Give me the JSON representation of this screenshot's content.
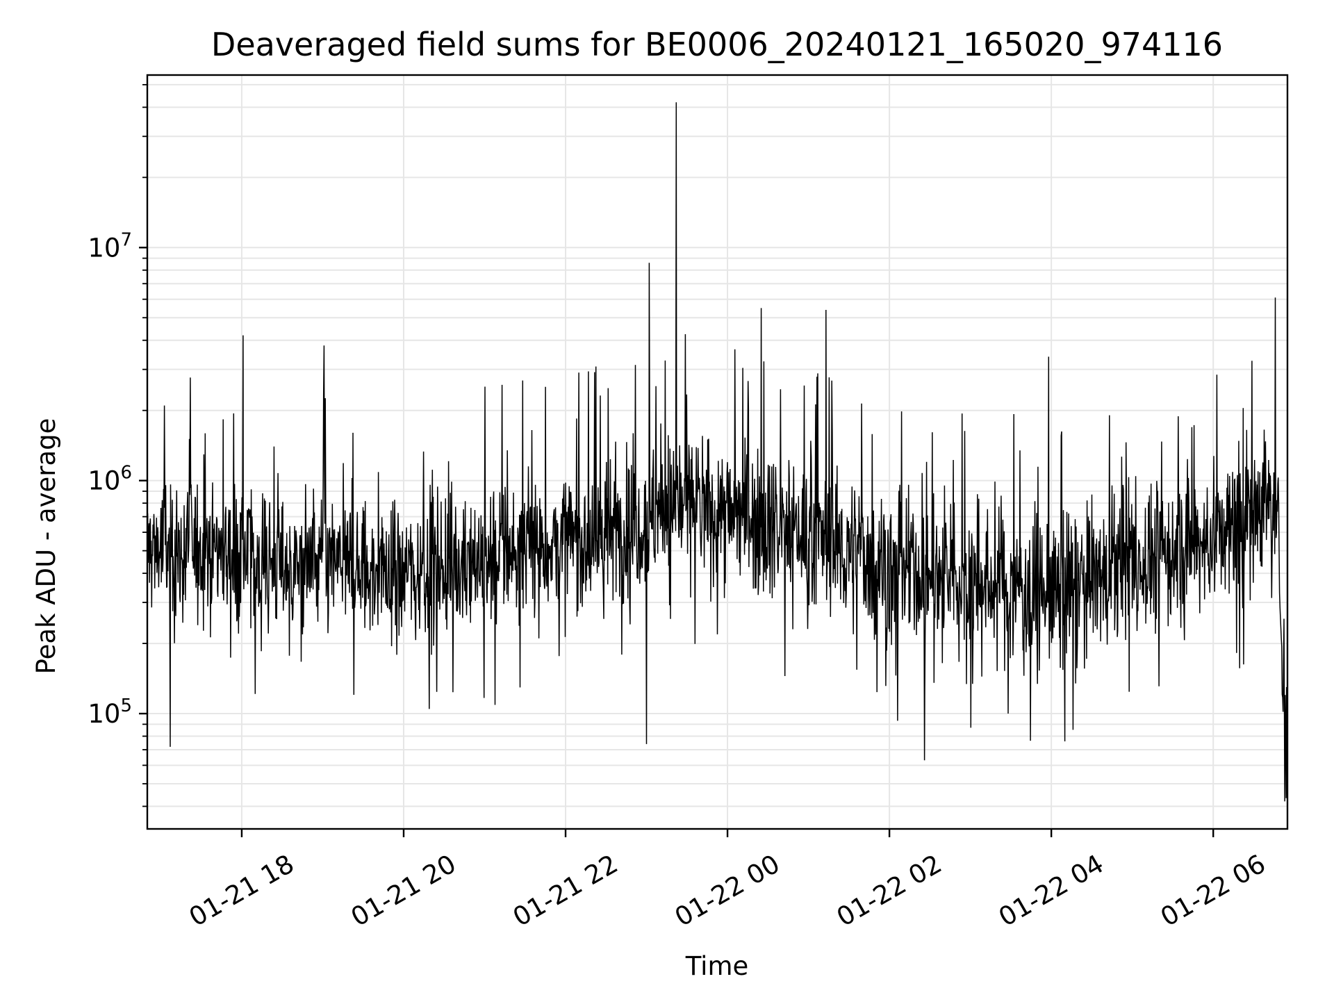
{
  "chart_data": {
    "type": "line",
    "title": "Deaveraged field sums for BE0006_20240121_165020_974116",
    "xlabel": "Time",
    "ylabel": "Peak ADU - average",
    "x_range": [
      "2024-01-21T16:50",
      "2024-01-22T06:55"
    ],
    "x_ticks": [
      {
        "t": "2024-01-21T18:00",
        "label": "01-21 18"
      },
      {
        "t": "2024-01-21T20:00",
        "label": "01-21 20"
      },
      {
        "t": "2024-01-21T22:00",
        "label": "01-21 22"
      },
      {
        "t": "2024-01-22T00:00",
        "label": "01-22 00"
      },
      {
        "t": "2024-01-22T02:00",
        "label": "01-22 02"
      },
      {
        "t": "2024-01-22T04:00",
        "label": "01-22 04"
      },
      {
        "t": "2024-01-22T06:00",
        "label": "01-22 06"
      }
    ],
    "y_scale": "log",
    "ylim": [
      32000,
      55000000
    ],
    "y_ticks": [
      {
        "value": 100000,
        "base": "10",
        "exp": "5"
      },
      {
        "value": 1000000,
        "base": "10",
        "exp": "6"
      },
      {
        "value": 10000000,
        "base": "10",
        "exp": "7"
      }
    ],
    "grid": true,
    "line_color": "#000000",
    "grid_color": "#e6e6e6",
    "series": [
      {
        "x": [
          "2024-01-21T16:50",
          "2024-01-21T17:00",
          "2024-01-21T17:15",
          "2024-01-21T17:30",
          "2024-01-21T17:45",
          "2024-01-21T18:00",
          "2024-01-21T18:20",
          "2024-01-21T18:40",
          "2024-01-21T19:00",
          "2024-01-21T19:20",
          "2024-01-21T19:40",
          "2024-01-21T20:00",
          "2024-01-21T20:20",
          "2024-01-21T20:40",
          "2024-01-21T21:00",
          "2024-01-21T21:20",
          "2024-01-21T21:40",
          "2024-01-21T22:00",
          "2024-01-21T22:20",
          "2024-01-21T22:40",
          "2024-01-21T23:00",
          "2024-01-21T23:20",
          "2024-01-21T23:40",
          "2024-01-22T00:00",
          "2024-01-22T00:20",
          "2024-01-22T00:40",
          "2024-01-22T01:00",
          "2024-01-22T01:20",
          "2024-01-22T01:40",
          "2024-01-22T02:00",
          "2024-01-22T02:20",
          "2024-01-22T02:40",
          "2024-01-22T03:00",
          "2024-01-22T03:20",
          "2024-01-22T03:40",
          "2024-01-22T04:00",
          "2024-01-22T04:20",
          "2024-01-22T04:40",
          "2024-01-22T05:00",
          "2024-01-22T05:20",
          "2024-01-22T05:40",
          "2024-01-22T06:00",
          "2024-01-22T06:20",
          "2024-01-22T06:40",
          "2024-01-22T06:48",
          "2024-01-22T06:55"
        ],
        "y": [
          500000,
          520000,
          480000,
          550000,
          510000,
          470000,
          450000,
          430000,
          460000,
          420000,
          400000,
          410000,
          430000,
          450000,
          470000,
          490000,
          520000,
          540000,
          560000,
          600000,
          700000,
          820000,
          780000,
          720000,
          700000,
          650000,
          580000,
          520000,
          470000,
          420000,
          400000,
          380000,
          370000,
          350000,
          340000,
          320000,
          350000,
          390000,
          430000,
          470000,
          510000,
          560000,
          620000,
          900000,
          600000,
          60000
        ]
      }
    ],
    "notable_peaks": [
      {
        "x": "2024-01-21T23:22",
        "y": 42000000
      },
      {
        "x": "2024-01-21T23:02",
        "y": 8600000
      },
      {
        "x": "2024-01-22T06:46",
        "y": 6100000
      },
      {
        "x": "2024-01-22T00:25",
        "y": 5500000
      },
      {
        "x": "2024-01-22T01:13",
        "y": 5400000
      },
      {
        "x": "2024-01-21T18:01",
        "y": 4200000
      },
      {
        "x": "2024-01-21T19:01",
        "y": 3800000
      },
      {
        "x": "2024-01-22T03:58",
        "y": 3400000
      }
    ],
    "notable_dips": [
      {
        "x": "2024-01-21T17:07",
        "y": 72000
      },
      {
        "x": "2024-01-21T23:00",
        "y": 74000
      },
      {
        "x": "2024-01-22T02:26",
        "y": 63000
      },
      {
        "x": "2024-01-22T04:10",
        "y": 76000
      },
      {
        "x": "2024-01-22T06:53",
        "y": 42000
      }
    ]
  }
}
